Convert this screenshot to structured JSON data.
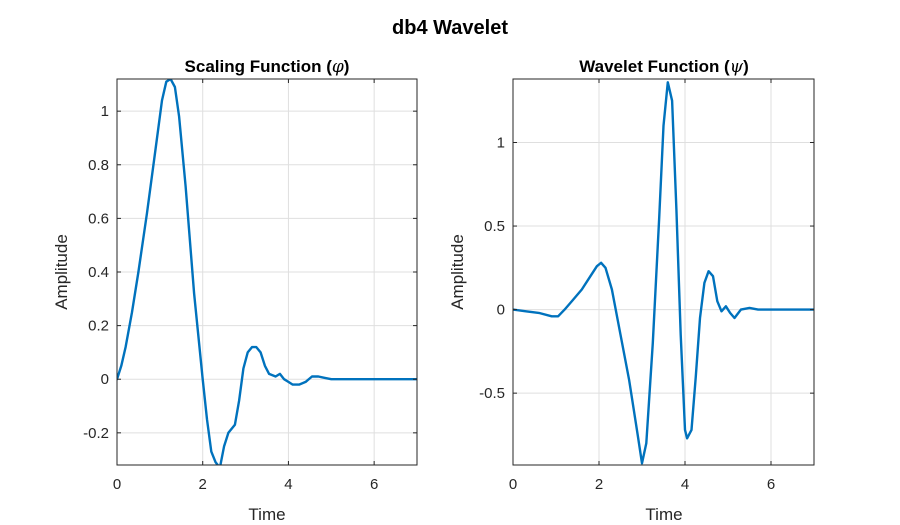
{
  "figure": {
    "title": "db4 Wavelet",
    "line_color": "#0072bd",
    "grid": true
  },
  "chart_data": [
    {
      "type": "line",
      "title_prefix": "Scaling Function (",
      "title_symbol": "φ",
      "title_suffix": ")",
      "xlabel": "Time",
      "ylabel": "Amplitude",
      "xlim": [
        0,
        7
      ],
      "ylim": [
        -0.32,
        1.12
      ],
      "xticks": [
        0,
        2,
        4,
        6
      ],
      "xtick_labels": [
        "0",
        "2",
        "4",
        "6"
      ],
      "yticks": [
        -0.2,
        0,
        0.2,
        0.4,
        0.6,
        0.8,
        1
      ],
      "ytick_labels": [
        "-0.2",
        "0",
        "0.2",
        "0.4",
        "0.6",
        "0.8",
        "1"
      ],
      "series": [
        {
          "x": [
            0,
            0.1,
            0.2,
            0.35,
            0.5,
            0.7,
            0.9,
            1.05,
            1.15,
            1.25,
            1.35,
            1.45,
            1.6,
            1.8,
            2.0,
            2.1,
            2.2,
            2.3,
            2.4,
            2.5,
            2.6,
            2.75,
            2.85,
            2.95,
            3.05,
            3.15,
            3.25,
            3.35,
            3.45,
            3.55,
            3.7,
            3.8,
            3.9,
            4.0,
            4.1,
            4.25,
            4.4,
            4.55,
            4.7,
            4.85,
            5.0,
            5.2,
            5.5,
            6.0,
            6.5,
            7.0
          ],
          "y": [
            0,
            0.05,
            0.12,
            0.25,
            0.4,
            0.62,
            0.86,
            1.04,
            1.11,
            1.12,
            1.09,
            0.98,
            0.72,
            0.32,
            0.0,
            -0.15,
            -0.27,
            -0.31,
            -0.33,
            -0.25,
            -0.2,
            -0.17,
            -0.08,
            0.04,
            0.1,
            0.12,
            0.12,
            0.1,
            0.05,
            0.02,
            0.01,
            0.02,
            0.0,
            -0.01,
            -0.02,
            -0.02,
            -0.01,
            0.01,
            0.01,
            0.005,
            0.0,
            0.0,
            0.0,
            0.0,
            0.0,
            0.0
          ]
        }
      ]
    },
    {
      "type": "line",
      "title_prefix": "Wavelet Function (",
      "title_symbol": "ψ",
      "title_suffix": ")",
      "xlabel": "Time",
      "ylabel": "Amplitude",
      "xlim": [
        0,
        7
      ],
      "ylim": [
        -0.93,
        1.38
      ],
      "xticks": [
        0,
        2,
        4,
        6
      ],
      "xtick_labels": [
        "0",
        "2",
        "4",
        "6"
      ],
      "yticks": [
        -0.5,
        0,
        0.5,
        1
      ],
      "ytick_labels": [
        "-0.5",
        "0",
        "0.5",
        "1"
      ],
      "series": [
        {
          "x": [
            0,
            0.3,
            0.6,
            0.9,
            1.05,
            1.2,
            1.4,
            1.6,
            1.8,
            1.95,
            2.05,
            2.15,
            2.3,
            2.5,
            2.7,
            2.9,
            3.0,
            3.1,
            3.25,
            3.4,
            3.5,
            3.6,
            3.7,
            3.8,
            3.9,
            4.0,
            4.05,
            4.15,
            4.25,
            4.35,
            4.45,
            4.55,
            4.65,
            4.75,
            4.85,
            4.95,
            5.05,
            5.15,
            5.3,
            5.5,
            5.7,
            6.0,
            6.5,
            7.0
          ],
          "y": [
            0,
            -0.01,
            -0.02,
            -0.04,
            -0.04,
            0.0,
            0.06,
            0.12,
            0.2,
            0.26,
            0.28,
            0.25,
            0.12,
            -0.15,
            -0.42,
            -0.75,
            -0.92,
            -0.8,
            -0.2,
            0.55,
            1.1,
            1.36,
            1.25,
            0.6,
            -0.15,
            -0.72,
            -0.77,
            -0.72,
            -0.4,
            -0.05,
            0.16,
            0.23,
            0.2,
            0.05,
            -0.01,
            0.02,
            -0.02,
            -0.05,
            0.0,
            0.01,
            0.0,
            0.0,
            0.0,
            0.0
          ]
        }
      ]
    }
  ]
}
